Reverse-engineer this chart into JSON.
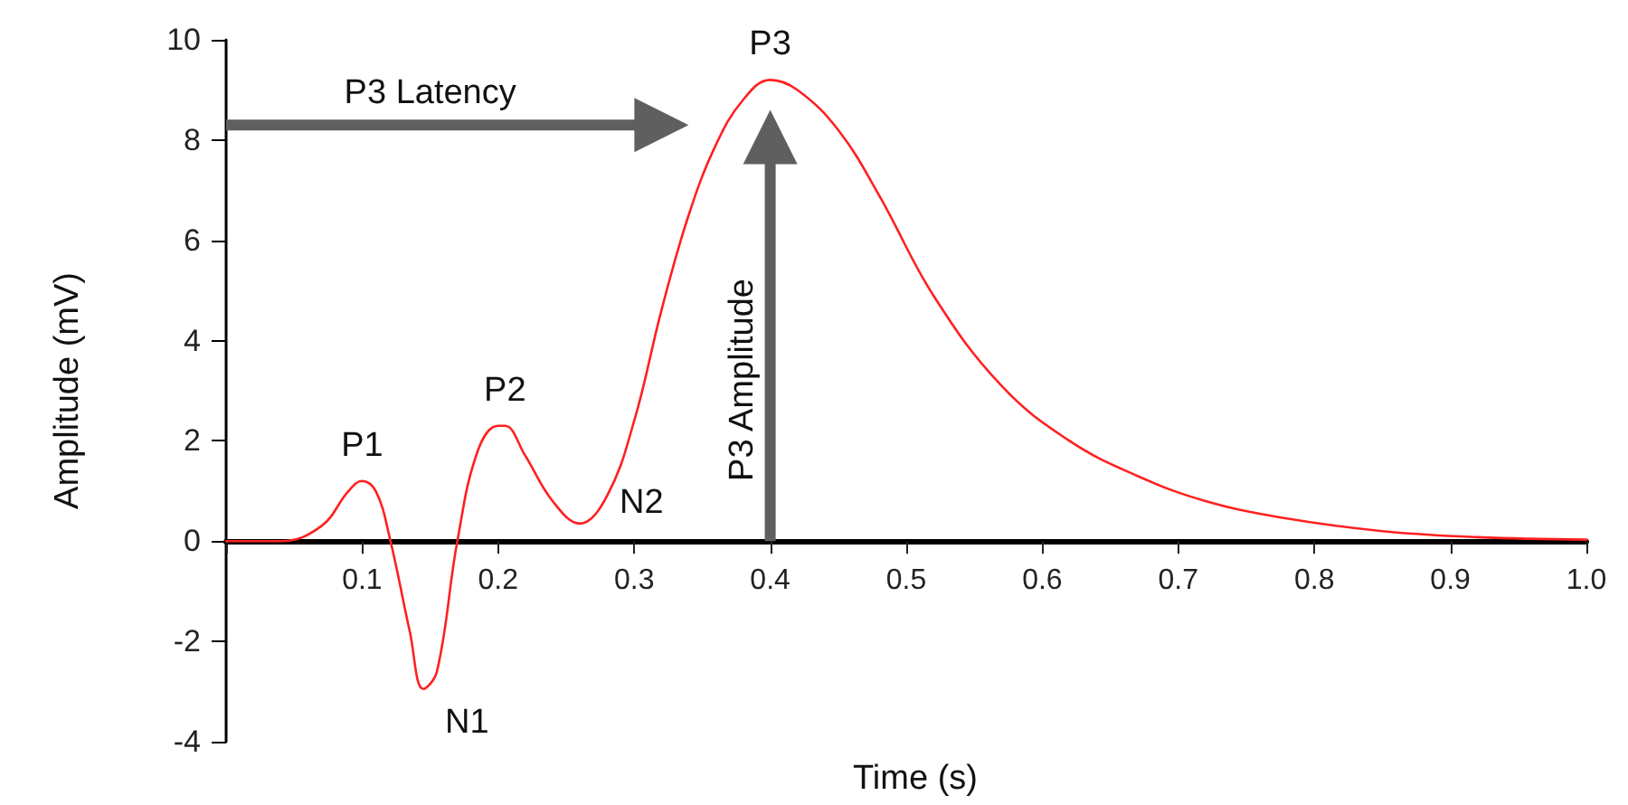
{
  "chart_data": {
    "type": "line",
    "xlabel": "Time (s)",
    "ylabel": "Amplitude (mV)",
    "x": [
      0,
      0.04,
      0.07,
      0.09,
      0.1,
      0.11,
      0.12,
      0.135,
      0.145,
      0.155,
      0.17,
      0.185,
      0.2,
      0.205,
      0.22,
      0.24,
      0.26,
      0.28,
      0.3,
      0.32,
      0.34,
      0.36,
      0.38,
      0.4,
      0.42,
      0.45,
      0.48,
      0.52,
      0.57,
      0.62,
      0.67,
      0.72,
      0.78,
      0.85,
      0.92,
      1.0
    ],
    "series": [
      {
        "color": "#ff2020",
        "values": [
          0,
          0,
          0.3,
          1.0,
          1.2,
          1.0,
          0.1,
          -1.8,
          -2.95,
          -2.6,
          0,
          1.8,
          2.3,
          2.3,
          1.7,
          0.8,
          0.35,
          0.9,
          2.4,
          4.6,
          6.5,
          7.9,
          8.8,
          9.2,
          9.0,
          8.2,
          6.9,
          4.9,
          3.1,
          2.0,
          1.3,
          0.8,
          0.45,
          0.2,
          0.08,
          0.03
        ]
      }
    ],
    "xlim": [
      0,
      1.0
    ],
    "xticks": [
      {
        "value": 0,
        "label": null
      },
      0.1,
      0.2,
      0.3,
      0.4,
      0.5,
      0.6,
      0.7,
      0.8,
      0.9,
      {
        "value": 1.0,
        "label": "1.0"
      }
    ],
    "ylim": [
      -4,
      10
    ],
    "yticks": [
      -4,
      -2,
      0,
      2,
      4,
      6,
      8,
      10
    ],
    "marker": "none",
    "line_style": "solid",
    "annotations": [
      {
        "text": "P1",
        "x": 0.1,
        "y": 1.2
      },
      {
        "text": "N1",
        "x": 0.145,
        "y": -2.95
      },
      {
        "text": "P2",
        "x": 0.205,
        "y": 2.3
      },
      {
        "text": "N2",
        "x": 0.26,
        "y": 0.35
      },
      {
        "text": "P3",
        "x": 0.4,
        "y": 9.2
      },
      "P3 Latency",
      "P3 Amplitude"
    ]
  }
}
